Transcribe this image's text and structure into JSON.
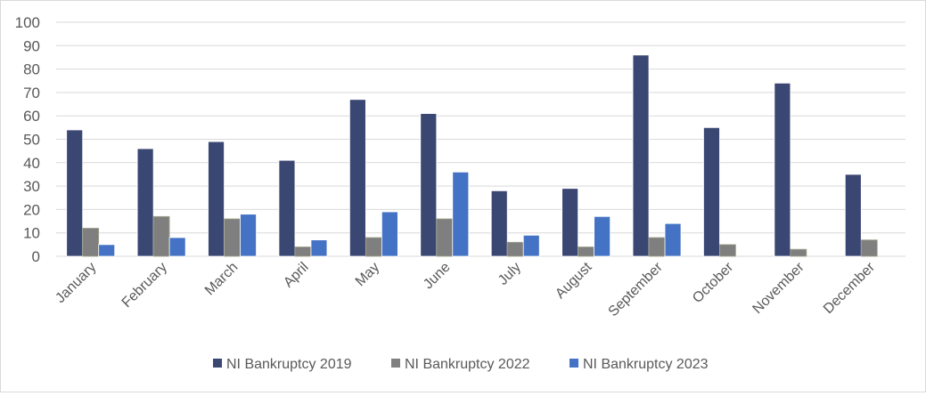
{
  "chart_data": {
    "type": "bar",
    "title": "",
    "xlabel": "",
    "ylabel": "",
    "ylim": [
      0,
      100
    ],
    "yticks": [
      0,
      10,
      20,
      30,
      40,
      50,
      60,
      70,
      80,
      90,
      100
    ],
    "grid": true,
    "legend_position": "bottom",
    "categories": [
      "January",
      "February",
      "March",
      "April",
      "May",
      "June",
      "July",
      "August",
      "September",
      "October",
      "November",
      "December"
    ],
    "series": [
      {
        "name": "NI Bankruptcy 2019",
        "color": "#3b4773",
        "values": [
          54,
          46,
          49,
          41,
          67,
          61,
          28,
          29,
          86,
          55,
          74,
          35
        ]
      },
      {
        "name": "NI Bankruptcy 2022",
        "color": "#7f7f7f",
        "values": [
          12,
          17,
          16,
          4,
          8,
          16,
          6,
          4,
          8,
          5,
          3,
          7
        ]
      },
      {
        "name": "NI Bankruptcy 2023",
        "color": "#4472c4",
        "values": [
          5,
          8,
          18,
          7,
          19,
          36,
          9,
          17,
          14,
          null,
          null,
          null
        ]
      }
    ]
  }
}
